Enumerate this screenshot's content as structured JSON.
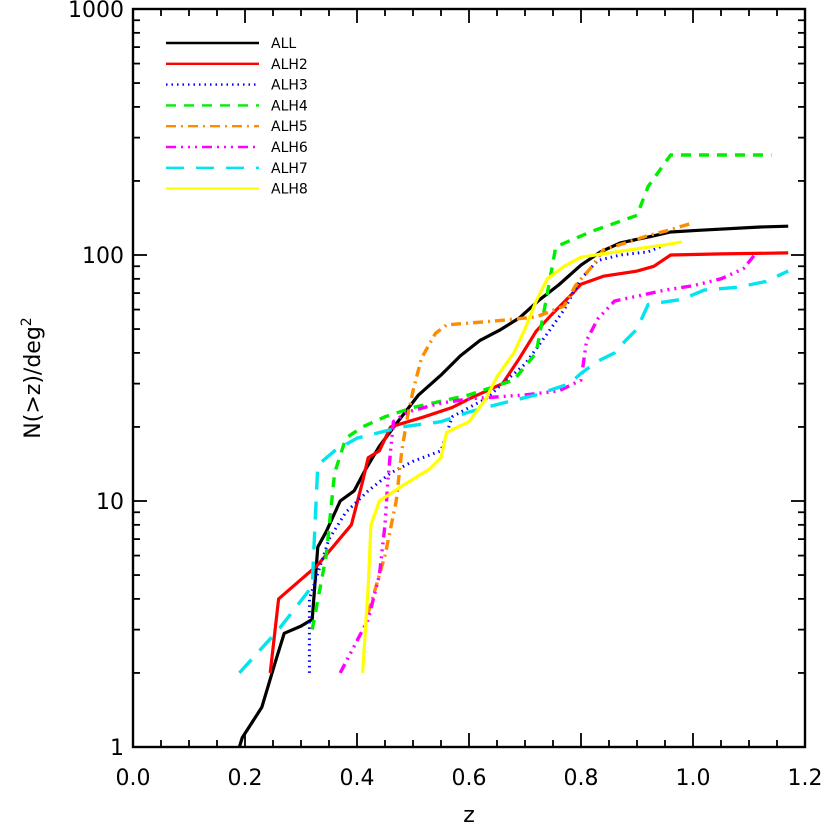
{
  "chart_data": {
    "type": "line",
    "title": "",
    "xlabel": "z",
    "ylabel": "N(>z)/deg",
    "ylabel_superscript": "2",
    "xlim": [
      0.0,
      1.2
    ],
    "ylim": [
      1,
      1000
    ],
    "yscale": "log",
    "grid": false,
    "legend_position": "upper left",
    "x_ticks": [
      "0.0",
      "0.2",
      "0.4",
      "0.6",
      "0.8",
      "1.0",
      "1.2"
    ],
    "y_ticks": [
      "1",
      "10",
      "100",
      "1000"
    ],
    "series": [
      {
        "name": "ALL",
        "color": "#000000",
        "dash": "solid",
        "width": 3.2,
        "points": [
          [
            0.19,
            1.0
          ],
          [
            0.195,
            1.09
          ],
          [
            0.23,
            1.45
          ],
          [
            0.255,
            2.25
          ],
          [
            0.27,
            2.9
          ],
          [
            0.3,
            3.1
          ],
          [
            0.32,
            3.3
          ],
          [
            0.33,
            6.5
          ],
          [
            0.345,
            7.5
          ],
          [
            0.37,
            10.0
          ],
          [
            0.395,
            11.0
          ],
          [
            0.415,
            13.4
          ],
          [
            0.44,
            16.7
          ],
          [
            0.475,
            21.3
          ],
          [
            0.51,
            27.0
          ],
          [
            0.55,
            32.5
          ],
          [
            0.585,
            39.0
          ],
          [
            0.62,
            45.0
          ],
          [
            0.655,
            49.5
          ],
          [
            0.69,
            55.5
          ],
          [
            0.725,
            65.5
          ],
          [
            0.76,
            75.5
          ],
          [
            0.8,
            91.0
          ],
          [
            0.835,
            103.0
          ],
          [
            0.87,
            112.0
          ],
          [
            0.925,
            119.0
          ],
          [
            0.96,
            124.0
          ],
          [
            1.01,
            126.0
          ],
          [
            1.12,
            130.0
          ],
          [
            1.17,
            131.0
          ]
        ]
      },
      {
        "name": "ALH2",
        "color": "#ff0000",
        "dash": "solid",
        "width": 3.2,
        "points": [
          [
            0.245,
            2.0
          ],
          [
            0.26,
            4.0
          ],
          [
            0.33,
            5.5
          ],
          [
            0.39,
            8.0
          ],
          [
            0.41,
            12.0
          ],
          [
            0.42,
            15.0
          ],
          [
            0.44,
            16.0
          ],
          [
            0.46,
            20.0
          ],
          [
            0.52,
            22.0
          ],
          [
            0.57,
            24.0
          ],
          [
            0.6,
            26.0
          ],
          [
            0.66,
            30.0
          ],
          [
            0.69,
            38.0
          ],
          [
            0.72,
            49.0
          ],
          [
            0.75,
            58.0
          ],
          [
            0.78,
            68.0
          ],
          [
            0.8,
            76.0
          ],
          [
            0.84,
            82.0
          ],
          [
            0.9,
            86.0
          ],
          [
            0.93,
            90.0
          ],
          [
            0.96,
            100.0
          ],
          [
            1.05,
            101.0
          ],
          [
            1.17,
            102.0
          ]
        ]
      },
      {
        "name": "ALH3",
        "color": "#0000ff",
        "dash": "dot",
        "width": 3,
        "points": [
          [
            0.315,
            2.0
          ],
          [
            0.315,
            4.0
          ],
          [
            0.35,
            7.0
          ],
          [
            0.38,
            9.0
          ],
          [
            0.42,
            11.0
          ],
          [
            0.46,
            13.0
          ],
          [
            0.5,
            14.5
          ],
          [
            0.55,
            16.0
          ],
          [
            0.57,
            22.0
          ],
          [
            0.6,
            24.0
          ],
          [
            0.63,
            26.0
          ],
          [
            0.66,
            30.0
          ],
          [
            0.7,
            36.0
          ],
          [
            0.74,
            48.0
          ],
          [
            0.77,
            60.0
          ],
          [
            0.8,
            80.0
          ],
          [
            0.83,
            95.0
          ],
          [
            0.87,
            100.0
          ],
          [
            0.92,
            103.0
          ],
          [
            0.95,
            110.0
          ]
        ]
      },
      {
        "name": "ALH4",
        "color": "#00ee00",
        "dash": "dash",
        "width": 3.4,
        "points": [
          [
            0.32,
            3.0
          ],
          [
            0.345,
            6.0
          ],
          [
            0.36,
            13.0
          ],
          [
            0.38,
            18.0
          ],
          [
            0.41,
            20.0
          ],
          [
            0.45,
            22.0
          ],
          [
            0.5,
            24.0
          ],
          [
            0.6,
            27.0
          ],
          [
            0.68,
            31.0
          ],
          [
            0.72,
            40.0
          ],
          [
            0.74,
            70.0
          ],
          [
            0.755,
            108.0
          ],
          [
            0.82,
            125.0
          ],
          [
            0.9,
            145.0
          ],
          [
            0.92,
            190.0
          ],
          [
            0.96,
            255.0
          ],
          [
            1.14,
            255.0
          ]
        ]
      },
      {
        "name": "ALH5",
        "color": "#ff8c00",
        "dash": "dashdot",
        "width": 3.4,
        "points": [
          [
            0.42,
            3.5
          ],
          [
            0.45,
            6.0
          ],
          [
            0.47,
            10.0
          ],
          [
            0.48,
            16.0
          ],
          [
            0.49,
            22.0
          ],
          [
            0.5,
            28.0
          ],
          [
            0.515,
            38.0
          ],
          [
            0.54,
            48.0
          ],
          [
            0.56,
            52.0
          ],
          [
            0.65,
            54.0
          ],
          [
            0.72,
            56.0
          ],
          [
            0.77,
            62.0
          ],
          [
            0.79,
            75.0
          ],
          [
            0.82,
            90.0
          ],
          [
            0.84,
            105.0
          ],
          [
            0.88,
            112.0
          ],
          [
            0.92,
            120.0
          ],
          [
            0.95,
            125.0
          ],
          [
            1.0,
            135.0
          ]
        ]
      },
      {
        "name": "ALH6",
        "color": "#ff00ff",
        "dash": "dashdotdot",
        "width": 3.4,
        "points": [
          [
            0.37,
            2.0
          ],
          [
            0.42,
            3.3
          ],
          [
            0.44,
            5.0
          ],
          [
            0.45,
            8.0
          ],
          [
            0.455,
            12.0
          ],
          [
            0.46,
            16.0
          ],
          [
            0.465,
            21.0
          ],
          [
            0.49,
            23.0
          ],
          [
            0.55,
            25.0
          ],
          [
            0.6,
            26.0
          ],
          [
            0.7,
            27.0
          ],
          [
            0.76,
            28.0
          ],
          [
            0.8,
            31.0
          ],
          [
            0.81,
            45.0
          ],
          [
            0.83,
            55.0
          ],
          [
            0.86,
            65.0
          ],
          [
            0.9,
            68.0
          ],
          [
            0.95,
            72.0
          ],
          [
            1.0,
            75.0
          ],
          [
            1.05,
            80.0
          ],
          [
            1.09,
            88.0
          ],
          [
            1.11,
            100.0
          ]
        ]
      },
      {
        "name": "ALH7",
        "color": "#00e5ee",
        "dash": "longdash",
        "width": 3.4,
        "points": [
          [
            0.19,
            2.0
          ],
          [
            0.26,
            3.0
          ],
          [
            0.32,
            4.5
          ],
          [
            0.325,
            8.0
          ],
          [
            0.33,
            14.0
          ],
          [
            0.36,
            16.0
          ],
          [
            0.4,
            18.0
          ],
          [
            0.48,
            20.0
          ],
          [
            0.55,
            21.0
          ],
          [
            0.6,
            23.0
          ],
          [
            0.66,
            25.0
          ],
          [
            0.72,
            27.0
          ],
          [
            0.78,
            30.0
          ],
          [
            0.8,
            33.0
          ],
          [
            0.83,
            37.0
          ],
          [
            0.86,
            40.0
          ],
          [
            0.88,
            45.0
          ],
          [
            0.9,
            50.0
          ],
          [
            0.92,
            63.0
          ],
          [
            0.98,
            66.0
          ],
          [
            1.02,
            72.0
          ],
          [
            1.08,
            74.0
          ],
          [
            1.13,
            78.0
          ],
          [
            1.17,
            86.0
          ]
        ]
      },
      {
        "name": "ALH8",
        "color": "#ffff00",
        "dash": "solid",
        "width": 3.2,
        "points": [
          [
            0.41,
            2.0
          ],
          [
            0.42,
            4.5
          ],
          [
            0.425,
            8.0
          ],
          [
            0.44,
            10.0
          ],
          [
            0.48,
            11.5
          ],
          [
            0.53,
            13.5
          ],
          [
            0.55,
            15.0
          ],
          [
            0.56,
            19.0
          ],
          [
            0.6,
            21.0
          ],
          [
            0.63,
            26.0
          ],
          [
            0.65,
            32.0
          ],
          [
            0.68,
            40.0
          ],
          [
            0.7,
            50.0
          ],
          [
            0.72,
            65.0
          ],
          [
            0.74,
            80.0
          ],
          [
            0.77,
            90.0
          ],
          [
            0.8,
            98.0
          ],
          [
            0.85,
            102.0
          ],
          [
            0.9,
            106.0
          ],
          [
            0.95,
            110.0
          ],
          [
            0.98,
            113.0
          ]
        ]
      }
    ]
  }
}
